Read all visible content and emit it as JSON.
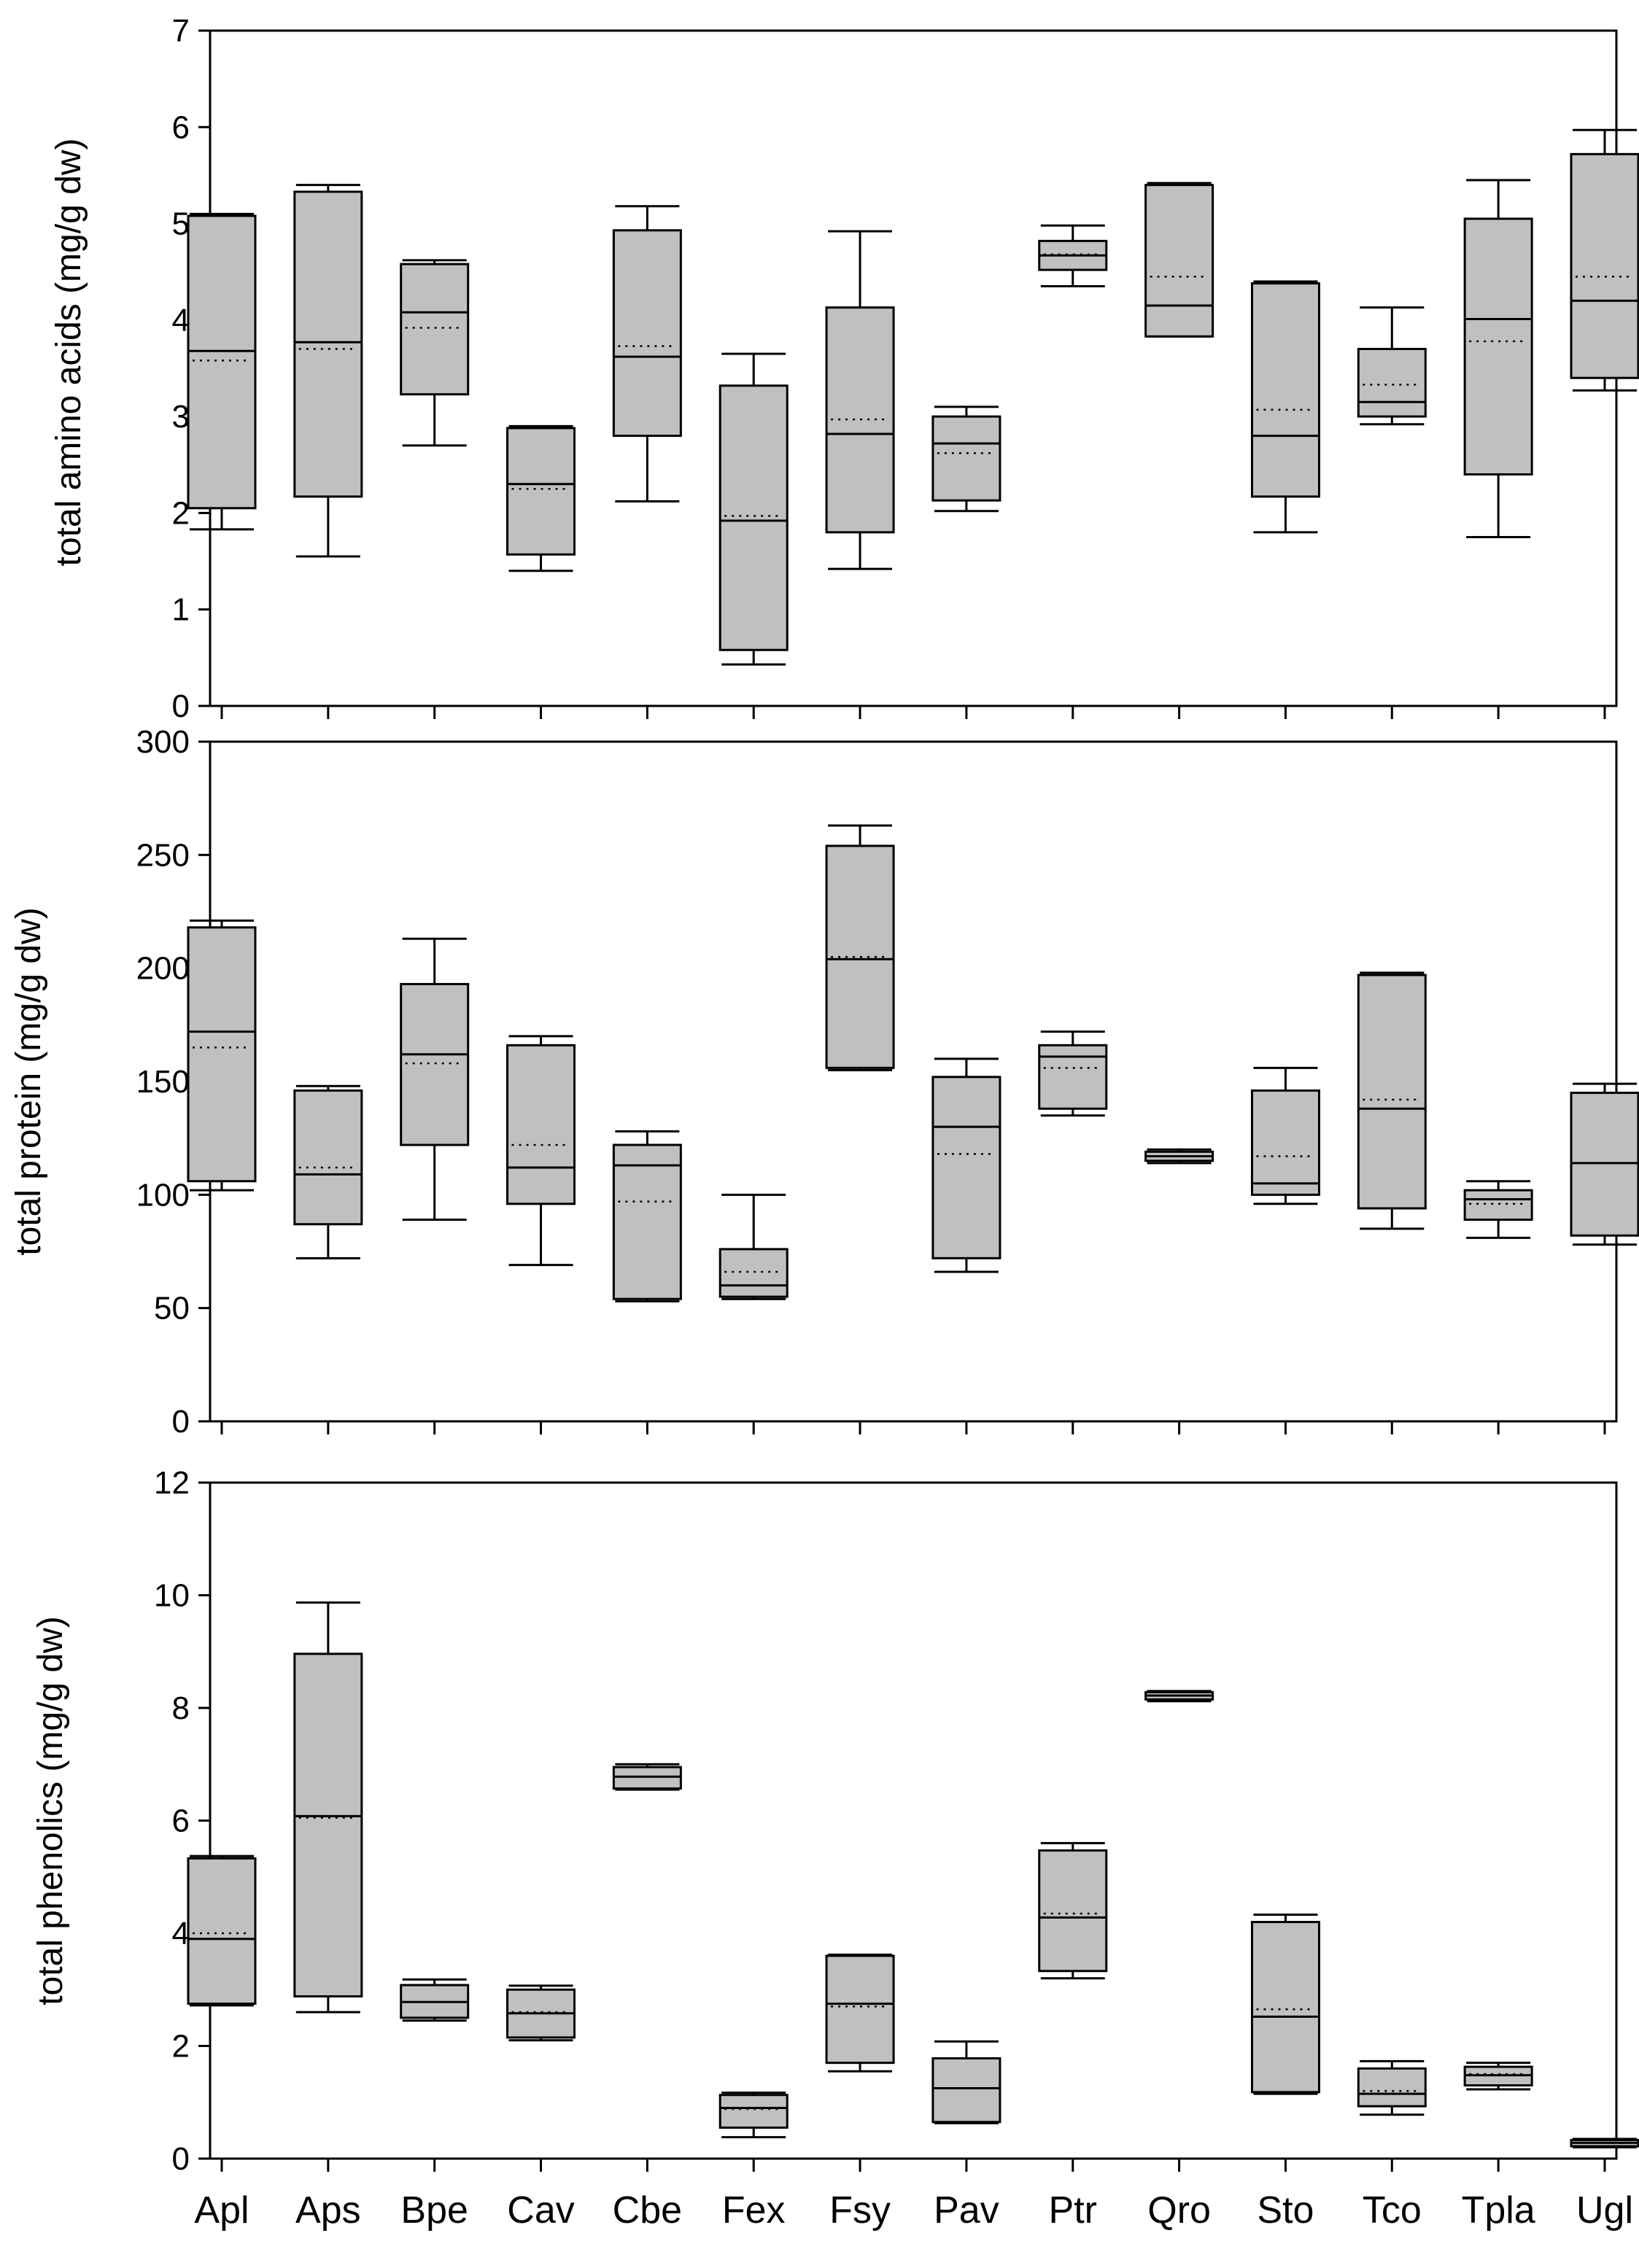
{
  "categories": [
    "Apl",
    "Aps",
    "Bpe",
    "Cav",
    "Cbe",
    "Fex",
    "Fsy",
    "Pav",
    "Ptr",
    "Qro",
    "Sto",
    "Tco",
    "Tpla",
    "Ugl"
  ],
  "chart_data": [
    {
      "type": "box",
      "ylabel": "total amino acids (mg/g dw)",
      "ylim": [
        0,
        7
      ],
      "yticks": [
        0,
        1,
        2,
        3,
        4,
        5,
        6,
        7
      ],
      "series": [
        {
          "category": "Apl",
          "min": 1.83,
          "q1": 2.05,
          "median": 3.68,
          "mean": 3.58,
          "q3": 5.08,
          "max": 5.1
        },
        {
          "category": "Aps",
          "min": 1.55,
          "q1": 2.17,
          "median": 3.77,
          "mean": 3.7,
          "q3": 5.33,
          "max": 5.4
        },
        {
          "category": "Bpe",
          "min": 2.7,
          "q1": 3.23,
          "median": 4.08,
          "mean": 3.92,
          "q3": 4.58,
          "max": 4.62
        },
        {
          "category": "Cav",
          "min": 1.4,
          "q1": 1.57,
          "median": 2.3,
          "mean": 2.25,
          "q3": 2.88,
          "max": 2.9
        },
        {
          "category": "Cbe",
          "min": 2.12,
          "q1": 2.8,
          "median": 3.62,
          "mean": 3.73,
          "q3": 4.93,
          "max": 5.18
        },
        {
          "category": "Fex",
          "min": 0.43,
          "q1": 0.58,
          "median": 1.92,
          "mean": 1.97,
          "q3": 3.32,
          "max": 3.65
        },
        {
          "category": "Fsy",
          "min": 1.42,
          "q1": 1.8,
          "median": 2.82,
          "mean": 2.97,
          "q3": 4.13,
          "max": 4.92
        },
        {
          "category": "Pav",
          "min": 2.02,
          "q1": 2.13,
          "median": 2.72,
          "mean": 2.62,
          "q3": 3.0,
          "max": 3.1
        },
        {
          "category": "Ptr",
          "min": 4.35,
          "q1": 4.52,
          "median": 4.67,
          "mean": 4.68,
          "q3": 4.82,
          "max": 4.98
        },
        {
          "category": "Qro",
          "min": 3.83,
          "q1": 3.83,
          "median": 4.15,
          "mean": 4.45,
          "q3": 5.4,
          "max": 5.42
        },
        {
          "category": "Sto",
          "min": 1.8,
          "q1": 2.17,
          "median": 2.8,
          "mean": 3.07,
          "q3": 4.38,
          "max": 4.4
        },
        {
          "category": "Tco",
          "min": 2.92,
          "q1": 3.0,
          "median": 3.15,
          "mean": 3.33,
          "q3": 3.7,
          "max": 4.13
        },
        {
          "category": "Tpla",
          "min": 1.75,
          "q1": 2.4,
          "median": 4.01,
          "mean": 3.78,
          "q3": 5.05,
          "max": 5.45
        },
        {
          "category": "Ugl",
          "min": 3.27,
          "q1": 3.4,
          "median": 4.2,
          "mean": 4.45,
          "q3": 5.72,
          "max": 5.97
        }
      ]
    },
    {
      "type": "box",
      "ylabel": "total protein (mg/g dw)",
      "ylim": [
        0,
        300
      ],
      "yticks": [
        0,
        50,
        100,
        150,
        200,
        250,
        300
      ],
      "series": [
        {
          "category": "Apl",
          "min": 102,
          "q1": 106,
          "median": 172,
          "mean": 165,
          "q3": 218,
          "max": 221
        },
        {
          "category": "Aps",
          "min": 72,
          "q1": 87,
          "median": 109,
          "mean": 112,
          "q3": 146,
          "max": 148
        },
        {
          "category": "Bpe",
          "min": 89,
          "q1": 122,
          "median": 162,
          "mean": 158,
          "q3": 193,
          "max": 213
        },
        {
          "category": "Cav",
          "min": 69,
          "q1": 96,
          "median": 112,
          "mean": 122,
          "q3": 166,
          "max": 170
        },
        {
          "category": "Cbe",
          "min": 53,
          "q1": 54,
          "median": 113,
          "mean": 97,
          "q3": 122,
          "max": 128
        },
        {
          "category": "Fex",
          "min": 54,
          "q1": 55,
          "median": 60,
          "mean": 66,
          "q3": 76,
          "max": 100
        },
        {
          "category": "Fsy",
          "min": 155,
          "q1": 156,
          "median": 204,
          "mean": 205,
          "q3": 254,
          "max": 263
        },
        {
          "category": "Pav",
          "min": 66,
          "q1": 72,
          "median": 130,
          "mean": 118,
          "q3": 152,
          "max": 160
        },
        {
          "category": "Ptr",
          "min": 135,
          "q1": 138,
          "median": 161,
          "mean": 156,
          "q3": 166,
          "max": 172
        },
        {
          "category": "Qro",
          "min": 114,
          "q1": 115,
          "median": 117,
          "mean": 117,
          "q3": 119,
          "max": 120
        },
        {
          "category": "Sto",
          "min": 96,
          "q1": 100,
          "median": 105,
          "mean": 117,
          "q3": 146,
          "max": 156
        },
        {
          "category": "Tco",
          "min": 85,
          "q1": 94,
          "median": 138,
          "mean": 142,
          "q3": 197,
          "max": 198
        },
        {
          "category": "Tpla",
          "min": 81,
          "q1": 89,
          "median": 98,
          "mean": 96,
          "q3": 102,
          "max": 106
        },
        {
          "category": "Ugl",
          "min": 78,
          "q1": 82,
          "median": 114,
          "mean": 114,
          "q3": 145,
          "max": 149
        }
      ]
    },
    {
      "type": "box",
      "ylabel": "total phenolics (mg/g dw)",
      "ylim": [
        0,
        12
      ],
      "yticks": [
        0,
        2,
        4,
        6,
        8,
        10,
        12
      ],
      "series": [
        {
          "category": "Apl",
          "min": 2.72,
          "q1": 2.75,
          "median": 3.9,
          "mean": 4.0,
          "q3": 5.33,
          "max": 5.37
        },
        {
          "category": "Aps",
          "min": 2.6,
          "q1": 2.88,
          "median": 6.08,
          "mean": 6.05,
          "q3": 8.96,
          "max": 9.87
        },
        {
          "category": "Bpe",
          "min": 2.45,
          "q1": 2.5,
          "median": 2.78,
          "mean": 2.78,
          "q3": 3.08,
          "max": 3.18
        },
        {
          "category": "Cav",
          "min": 2.1,
          "q1": 2.15,
          "median": 2.58,
          "mean": 2.6,
          "q3": 3.0,
          "max": 3.07
        },
        {
          "category": "Cbe",
          "min": 6.55,
          "q1": 6.57,
          "median": 6.78,
          "mean": 6.78,
          "q3": 6.95,
          "max": 7.0
        },
        {
          "category": "Fex",
          "min": 0.38,
          "q1": 0.55,
          "median": 0.9,
          "mean": 0.88,
          "q3": 1.13,
          "max": 1.17
        },
        {
          "category": "Fsy",
          "min": 1.55,
          "q1": 1.7,
          "median": 2.75,
          "mean": 2.7,
          "q3": 3.6,
          "max": 3.62
        },
        {
          "category": "Pav",
          "min": 0.63,
          "q1": 0.65,
          "median": 1.25,
          "mean": 1.25,
          "q3": 1.78,
          "max": 2.08
        },
        {
          "category": "Ptr",
          "min": 3.2,
          "q1": 3.33,
          "median": 4.28,
          "mean": 4.35,
          "q3": 5.47,
          "max": 5.6
        },
        {
          "category": "Qro",
          "min": 8.12,
          "q1": 8.15,
          "median": 8.22,
          "mean": 8.22,
          "q3": 8.28,
          "max": 8.3
        },
        {
          "category": "Sto",
          "min": 1.15,
          "q1": 1.18,
          "median": 2.52,
          "mean": 2.65,
          "q3": 4.2,
          "max": 4.33
        },
        {
          "category": "Tco",
          "min": 0.78,
          "q1": 0.93,
          "median": 1.15,
          "mean": 1.2,
          "q3": 1.6,
          "max": 1.73
        },
        {
          "category": "Tpla",
          "min": 1.23,
          "q1": 1.3,
          "median": 1.48,
          "mean": 1.5,
          "q3": 1.63,
          "max": 1.7
        },
        {
          "category": "Ugl",
          "min": 0.2,
          "q1": 0.22,
          "median": 0.28,
          "mean": 0.28,
          "q3": 0.33,
          "max": 0.35
        }
      ]
    }
  ],
  "colors": {
    "box_fill": "#c0c0c0",
    "stroke": "#000000",
    "background": "#ffffff"
  }
}
